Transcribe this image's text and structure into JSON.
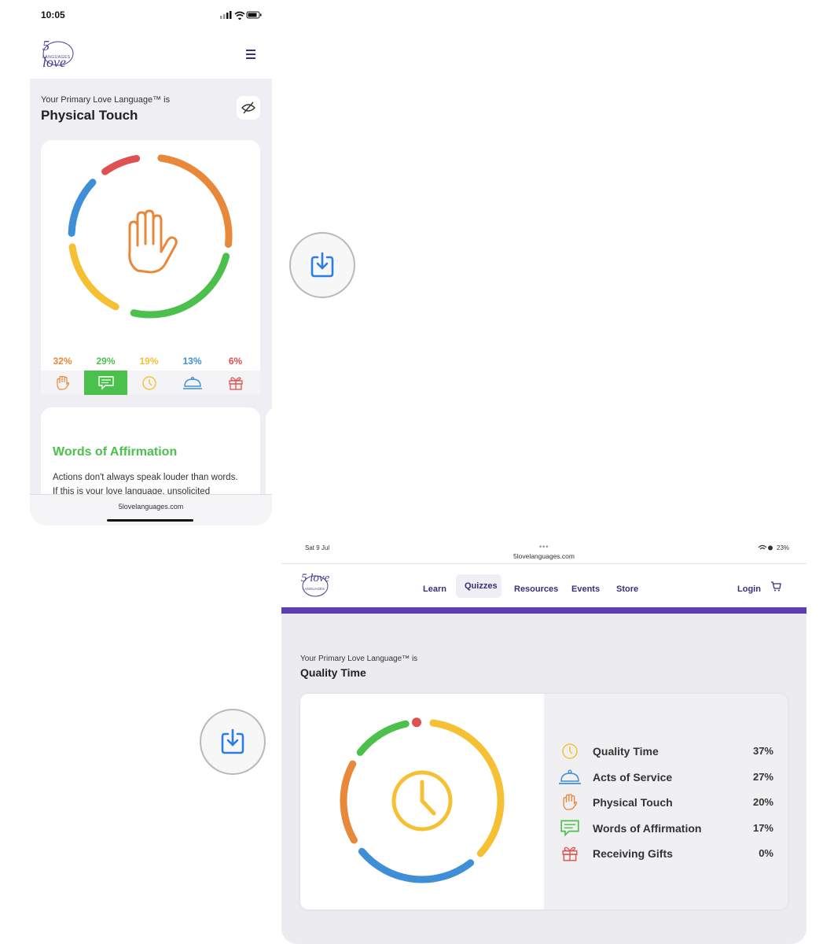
{
  "phone": {
    "status_time": "10:05",
    "logo_top": "5 love",
    "logo_bottom": "LANGUAGES",
    "primary_label": "Your Primary Love Language™ is",
    "primary_value": "Physical Touch",
    "center_icon": "hand-icon",
    "tabs": [
      {
        "pct": "32%",
        "icon": "hand-icon",
        "color": "#e8883a"
      },
      {
        "pct": "29%",
        "icon": "chat-icon",
        "color": "#4cc04c"
      },
      {
        "pct": "19%",
        "icon": "clock-icon",
        "color": "#f5c033"
      },
      {
        "pct": "13%",
        "icon": "bell-icon",
        "color": "#3f8fd6"
      },
      {
        "pct": "6%",
        "icon": "gift-icon",
        "color": "#e05050"
      }
    ],
    "section_title": "Words of Affirmation",
    "section_text_1": "Actions don't always speak louder than words.",
    "section_text_2": "If this is your love language, unsolicited",
    "url": "5lovelanguages.com"
  },
  "tablet": {
    "status_left": "Sat 9 Jul",
    "url": "5lovelanguages.com",
    "battery": "23%",
    "nav": [
      "Learn",
      "Quizzes",
      "Resources",
      "Events",
      "Store"
    ],
    "login": "Login",
    "primary_label": "Your Primary Love Language™ is",
    "primary_value": "Quality Time",
    "rows": [
      {
        "label": "Quality Time",
        "pct": "37%",
        "icon": "clock-icon",
        "color": "#f5c033"
      },
      {
        "label": "Acts of Service",
        "pct": "27%",
        "icon": "bell-icon",
        "color": "#3f8fd6"
      },
      {
        "label": "Physical Touch",
        "pct": "20%",
        "icon": "hand-icon",
        "color": "#e8883a"
      },
      {
        "label": "Words of Affirmation",
        "pct": "17%",
        "icon": "chat-icon",
        "color": "#4cc04c"
      },
      {
        "label": "Receiving Gifts",
        "pct": "0%",
        "icon": "gift-icon",
        "color": "#e05050"
      }
    ]
  },
  "colors": {
    "orange": "#e8883a",
    "green": "#4cc04c",
    "yellow": "#f5c033",
    "blue": "#3f8fd6",
    "red": "#e05050",
    "brand": "#5b3fb0"
  }
}
